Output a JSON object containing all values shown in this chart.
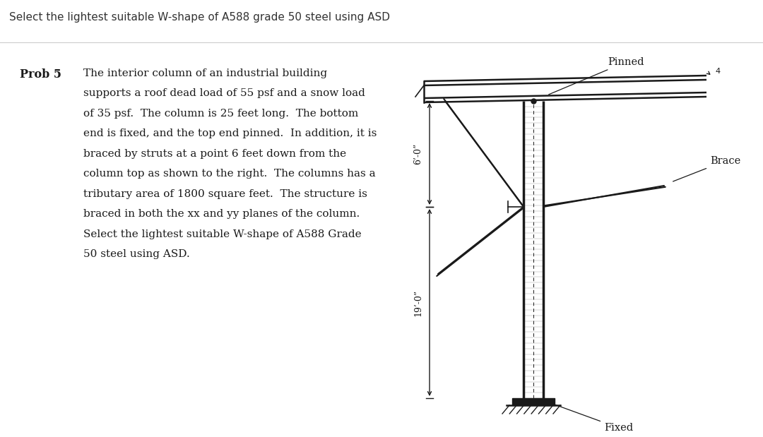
{
  "title": "Select the lightest suitable W-shape of A588 grade 50 steel using ASD",
  "prob_label": "Prob 5",
  "problem_text": "The interior column of an industrial building\nsupports a roof dead load of 55 psf and a snow load\nof 35 psf.  The column is 25 feet long.  The bottom\nend is fixed, and the top end pinned.  In addition, it is\nbraced by struts at a point 6 feet down from the\ncolumn top as shown to the right.  The columns has a\ntributary area of 1800 square feet.  The structure is\nbraced in both the xx and yy planes of the column.\nSelect the lightest suitable W-shape of A588 Grade\n50 steel using ASD.",
  "bg_color": "#e8e5e0",
  "title_bg": "#ffffff",
  "text_color": "#111111",
  "dim_top": "6’-0”",
  "dim_bot": "19’-0”",
  "label_pinned": "Pinned",
  "label_fixed": "Fixed",
  "label_brace": "Brace"
}
